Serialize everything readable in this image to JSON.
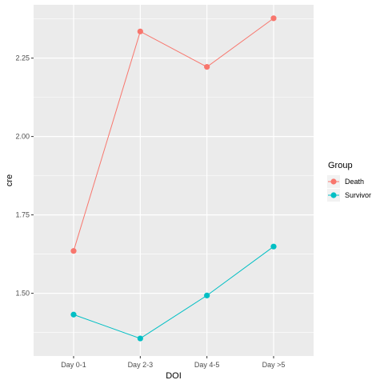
{
  "chart_data": {
    "type": "line",
    "xlabel": "DOI",
    "ylabel": "cre",
    "categories": [
      "Day 0-1",
      "Day 2-3",
      "Day 4-5",
      "Day >5"
    ],
    "ylim": [
      1.3,
      2.42
    ],
    "yticks": [
      1.5,
      1.75,
      2.0,
      2.25
    ],
    "ytick_labels": [
      "1.50",
      "1.75",
      "2.00",
      "2.25"
    ],
    "grid": true,
    "legend": {
      "title": "Group",
      "position": "right"
    },
    "series": [
      {
        "name": "Death",
        "color": "#F8766D",
        "values": [
          1.635,
          2.335,
          2.222,
          2.377
        ]
      },
      {
        "name": "Survivor",
        "color": "#00BFC4",
        "values": [
          1.432,
          1.356,
          1.493,
          1.649
        ]
      }
    ]
  }
}
